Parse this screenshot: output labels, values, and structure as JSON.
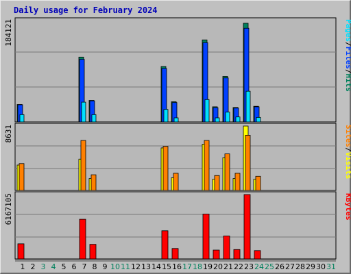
{
  "title": "Daily usage for February 2024",
  "chart_data": [
    {
      "type": "bar",
      "panel": "hits-files-pages",
      "ymax_label": "184121",
      "ymax": 184121,
      "grid": true,
      "legend": [
        {
          "label": "Pages",
          "color": "#00e0ff"
        },
        {
          "label": "/",
          "color": "#000000"
        },
        {
          "label": "Files",
          "color": "#0040ff"
        },
        {
          "label": "/",
          "color": "#000000"
        },
        {
          "label": "Hits",
          "color": "#00805c"
        }
      ],
      "categories": [
        "1",
        "2",
        "3",
        "4",
        "5",
        "6",
        "7",
        "8",
        "9",
        "10",
        "11",
        "12",
        "13",
        "14",
        "15",
        "16",
        "17",
        "18",
        "19",
        "20",
        "21",
        "22",
        "23",
        "24",
        "25",
        "26",
        "27",
        "28",
        "29",
        "30",
        "31"
      ],
      "series": [
        {
          "name": "Hits",
          "color": "#00805c",
          "values": [
            31500,
            0,
            0,
            0,
            0,
            0,
            117000,
            38900,
            0,
            0,
            0,
            0,
            0,
            0,
            100000,
            36400,
            0,
            0,
            148000,
            27300,
            82200,
            26100,
            178000,
            28200,
            0,
            0,
            0,
            0,
            0,
            0,
            0
          ]
        },
        {
          "name": "Files",
          "color": "#0040ff",
          "values": [
            31000,
            0,
            0,
            0,
            0,
            0,
            113000,
            38000,
            0,
            0,
            0,
            0,
            0,
            0,
            96500,
            35000,
            0,
            0,
            143000,
            25700,
            79400,
            25000,
            169000,
            27300,
            0,
            0,
            0,
            0,
            0,
            0,
            0
          ]
        },
        {
          "name": "Pages",
          "color": "#00e0ff",
          "values": [
            13200,
            0,
            0,
            0,
            0,
            0,
            35700,
            13200,
            0,
            0,
            0,
            0,
            0,
            0,
            22600,
            7400,
            0,
            0,
            40400,
            7400,
            17700,
            9000,
            55400,
            8200,
            0,
            0,
            0,
            0,
            0,
            0,
            0
          ]
        }
      ]
    },
    {
      "type": "bar",
      "panel": "visits-sites",
      "ymax_label": "8631",
      "ymax": 8631,
      "grid": true,
      "legend": [
        {
          "label": "Sites",
          "color": "#ff8000"
        },
        {
          "label": "/",
          "color": "#000000"
        },
        {
          "label": "Visits",
          "color": "#ffff00"
        }
      ],
      "categories": [
        "1",
        "2",
        "3",
        "4",
        "5",
        "6",
        "7",
        "8",
        "9",
        "10",
        "11",
        "12",
        "13",
        "14",
        "15",
        "16",
        "17",
        "18",
        "19",
        "20",
        "21",
        "22",
        "23",
        "24",
        "25",
        "26",
        "27",
        "28",
        "29",
        "30",
        "31"
      ],
      "series": [
        {
          "name": "Visits",
          "color": "#ffff00",
          "values": [
            3400,
            0,
            0,
            0,
            0,
            0,
            4200,
            1600,
            0,
            0,
            0,
            0,
            0,
            0,
            5700,
            1700,
            0,
            0,
            6200,
            1500,
            4400,
            1600,
            8631,
            1500,
            0,
            0,
            0,
            0,
            0,
            0,
            0
          ]
        },
        {
          "name": "Sites",
          "color": "#ff8000",
          "values": [
            3600,
            0,
            0,
            0,
            0,
            0,
            6700,
            2100,
            0,
            0,
            0,
            0,
            0,
            0,
            5900,
            2300,
            0,
            0,
            6700,
            2000,
            4900,
            2300,
            7400,
            1900,
            0,
            0,
            0,
            0,
            0,
            0,
            0
          ]
        }
      ]
    },
    {
      "type": "bar",
      "panel": "kbytes",
      "ymax_label": "6167105",
      "ymax": 6167105,
      "grid": true,
      "legend": [
        {
          "label": "KBytes",
          "color": "#ff0000"
        }
      ],
      "categories": [
        "1",
        "2",
        "3",
        "4",
        "5",
        "6",
        "7",
        "8",
        "9",
        "10",
        "11",
        "12",
        "13",
        "14",
        "15",
        "16",
        "17",
        "18",
        "19",
        "20",
        "21",
        "22",
        "23",
        "24",
        "25",
        "26",
        "27",
        "28",
        "29",
        "30",
        "31"
      ],
      "series": [
        {
          "name": "KBytes",
          "color": "#ff0000",
          "values": [
            1450000,
            0,
            0,
            0,
            0,
            0,
            3800000,
            1400000,
            0,
            0,
            0,
            0,
            0,
            0,
            2700000,
            1000000,
            0,
            0,
            4300000,
            850000,
            2200000,
            900000,
            6167105,
            800000,
            0,
            0,
            0,
            0,
            0,
            0,
            0
          ]
        }
      ]
    }
  ],
  "x_ticks": [
    {
      "label": "1",
      "color": "#000000"
    },
    {
      "label": "2",
      "color": "#000000"
    },
    {
      "label": "3",
      "color": "#00805c"
    },
    {
      "label": "4",
      "color": "#00805c"
    },
    {
      "label": "5",
      "color": "#000000"
    },
    {
      "label": "6",
      "color": "#000000"
    },
    {
      "label": "7",
      "color": "#000000"
    },
    {
      "label": "8",
      "color": "#000000"
    },
    {
      "label": "9",
      "color": "#000000"
    },
    {
      "label": "10",
      "color": "#00805c"
    },
    {
      "label": "11",
      "color": "#00805c"
    },
    {
      "label": "12",
      "color": "#000000"
    },
    {
      "label": "13",
      "color": "#000000"
    },
    {
      "label": "14",
      "color": "#000000"
    },
    {
      "label": "15",
      "color": "#000000"
    },
    {
      "label": "16",
      "color": "#000000"
    },
    {
      "label": "17",
      "color": "#00805c"
    },
    {
      "label": "18",
      "color": "#00805c"
    },
    {
      "label": "19",
      "color": "#000000"
    },
    {
      "label": "20",
      "color": "#000000"
    },
    {
      "label": "21",
      "color": "#000000"
    },
    {
      "label": "22",
      "color": "#000000"
    },
    {
      "label": "23",
      "color": "#000000"
    },
    {
      "label": "24",
      "color": "#00805c"
    },
    {
      "label": "25",
      "color": "#00805c"
    },
    {
      "label": "26",
      "color": "#000000"
    },
    {
      "label": "27",
      "color": "#000000"
    },
    {
      "label": "28",
      "color": "#000000"
    },
    {
      "label": "29",
      "color": "#000000"
    },
    {
      "label": "30",
      "color": "#000000"
    },
    {
      "label": "31",
      "color": "#00805c"
    }
  ]
}
